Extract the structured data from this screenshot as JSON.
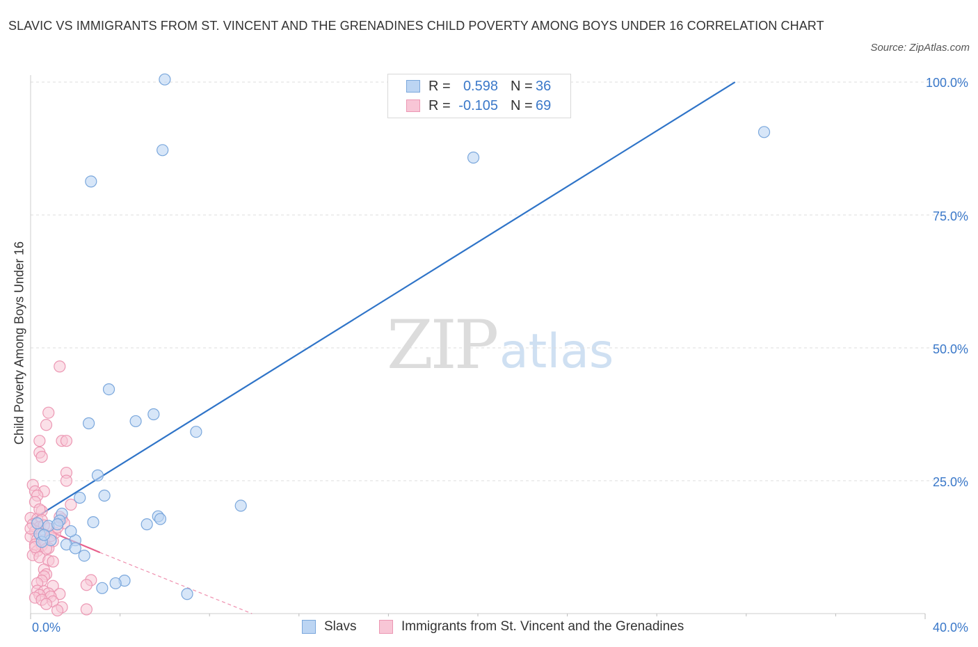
{
  "title": "SLAVIC VS IMMIGRANTS FROM ST. VINCENT AND THE GRENADINES CHILD POVERTY AMONG BOYS UNDER 16 CORRELATION CHART",
  "source": "Source: ZipAtlas.com",
  "watermark": {
    "zip": "ZIP",
    "atlas": "atlas"
  },
  "legend": {
    "rows": [
      {
        "r_label": "R =",
        "r_value": "0.598",
        "n_label": "N =",
        "n_value": "36"
      },
      {
        "r_label": "R =",
        "r_value": "-0.105",
        "n_label": "N =",
        "n_value": "69"
      }
    ]
  },
  "colors": {
    "blue_fill": "#bcd5f3",
    "blue_stroke": "#7aa7dc",
    "blue_line": "#2f74c8",
    "pink_fill": "#f8c6d6",
    "pink_stroke": "#ec97b3",
    "pink_line": "#e8608c",
    "axis_text": "#3a78c9",
    "grid": "#dddddd"
  },
  "chart_data": {
    "type": "scatter",
    "title": "SLAVIC VS IMMIGRANTS FROM ST. VINCENT AND THE GRENADINES CHILD POVERTY AMONG BOYS UNDER 16 CORRELATION CHART",
    "xlabel": "",
    "ylabel": "Child Poverty Among Boys Under 16",
    "xlim": [
      0,
      40
    ],
    "ylim": [
      0,
      100
    ],
    "x_tick_labels": [
      "0.0%",
      "40.0%"
    ],
    "y_tick_values": [
      25,
      50,
      75,
      100
    ],
    "y_tick_labels": [
      "25.0%",
      "50.0%",
      "75.0%",
      "100.0%"
    ],
    "series": [
      {
        "name": "Slavs",
        "color": "blue",
        "R": 0.598,
        "N": 36,
        "trend": {
          "x1": 0,
          "y1": 17.5,
          "x2": 31.5,
          "y2": 100
        },
        "points": [
          [
            6.0,
            100.5
          ],
          [
            5.9,
            87.2
          ],
          [
            2.7,
            81.3
          ],
          [
            19.8,
            85.8
          ],
          [
            32.8,
            90.6
          ],
          [
            3.5,
            42.2
          ],
          [
            4.7,
            36.2
          ],
          [
            2.6,
            35.8
          ],
          [
            5.5,
            37.5
          ],
          [
            7.4,
            34.2
          ],
          [
            3.0,
            26.0
          ],
          [
            2.2,
            21.8
          ],
          [
            3.3,
            22.2
          ],
          [
            9.4,
            20.3
          ],
          [
            5.7,
            18.3
          ],
          [
            5.8,
            17.8
          ],
          [
            5.2,
            16.8
          ],
          [
            2.8,
            17.2
          ],
          [
            1.4,
            18.8
          ],
          [
            1.3,
            17.5
          ],
          [
            0.8,
            16.5
          ],
          [
            0.4,
            15.0
          ],
          [
            0.9,
            13.8
          ],
          [
            2.0,
            13.8
          ],
          [
            1.8,
            15.5
          ],
          [
            1.6,
            13.0
          ],
          [
            2.0,
            12.3
          ],
          [
            2.4,
            10.9
          ],
          [
            0.5,
            13.5
          ],
          [
            0.3,
            17.0
          ],
          [
            4.2,
            6.2
          ],
          [
            3.8,
            5.7
          ],
          [
            3.2,
            4.8
          ],
          [
            7.0,
            3.7
          ],
          [
            0.6,
            14.8
          ],
          [
            1.2,
            16.8
          ]
        ]
      },
      {
        "name": "Immigrants from St. Vincent and the Grenadines",
        "color": "pink",
        "R": -0.105,
        "N": 69,
        "trend": {
          "x1": 0,
          "y1": 17.0,
          "x2": 3.1,
          "y2": 11.5,
          "dash_x2": 9.9,
          "dash_y2": 0
        },
        "points": [
          [
            1.3,
            46.5
          ],
          [
            0.8,
            37.8
          ],
          [
            0.7,
            35.5
          ],
          [
            1.4,
            32.5
          ],
          [
            1.6,
            32.5
          ],
          [
            0.4,
            32.5
          ],
          [
            0.4,
            30.3
          ],
          [
            0.5,
            29.5
          ],
          [
            1.6,
            26.5
          ],
          [
            1.6,
            25.0
          ],
          [
            0.1,
            24.2
          ],
          [
            0.2,
            23.0
          ],
          [
            0.6,
            23.0
          ],
          [
            0.3,
            22.2
          ],
          [
            1.8,
            20.5
          ],
          [
            0.2,
            21.0
          ],
          [
            0.5,
            19.3
          ],
          [
            0.0,
            18.0
          ],
          [
            0.3,
            17.8
          ],
          [
            0.5,
            17.6
          ],
          [
            1.4,
            17.8
          ],
          [
            1.5,
            17.0
          ],
          [
            0.1,
            16.8
          ],
          [
            0.4,
            16.3
          ],
          [
            0.8,
            16.0
          ],
          [
            0.2,
            15.5
          ],
          [
            0.5,
            15.0
          ],
          [
            0.0,
            14.5
          ],
          [
            0.3,
            14.0
          ],
          [
            0.6,
            13.8
          ],
          [
            1.0,
            13.6
          ],
          [
            0.2,
            13.0
          ],
          [
            0.5,
            12.8
          ],
          [
            0.8,
            12.3
          ],
          [
            0.3,
            11.8
          ],
          [
            0.1,
            11.0
          ],
          [
            0.4,
            10.6
          ],
          [
            0.8,
            10.0
          ],
          [
            1.0,
            9.8
          ],
          [
            0.6,
            8.3
          ],
          [
            0.7,
            7.4
          ],
          [
            0.6,
            7.0
          ],
          [
            0.5,
            6.2
          ],
          [
            0.3,
            5.7
          ],
          [
            1.0,
            5.2
          ],
          [
            2.7,
            6.3
          ],
          [
            2.5,
            5.4
          ],
          [
            0.3,
            4.3
          ],
          [
            0.6,
            4.2
          ],
          [
            0.8,
            3.8
          ],
          [
            0.4,
            3.5
          ],
          [
            1.3,
            3.7
          ],
          [
            0.9,
            3.2
          ],
          [
            0.2,
            3.0
          ],
          [
            0.5,
            2.6
          ],
          [
            1.0,
            2.3
          ],
          [
            0.7,
            1.8
          ],
          [
            1.4,
            1.2
          ],
          [
            2.5,
            0.8
          ],
          [
            1.2,
            0.6
          ],
          [
            0.6,
            16.6
          ],
          [
            1.1,
            15.2
          ],
          [
            0.9,
            14.6
          ],
          [
            1.2,
            16.2
          ],
          [
            0.7,
            12.2
          ],
          [
            0.2,
            12.5
          ],
          [
            1.3,
            18.2
          ],
          [
            0.4,
            19.6
          ],
          [
            0.0,
            16.0
          ]
        ]
      }
    ]
  }
}
